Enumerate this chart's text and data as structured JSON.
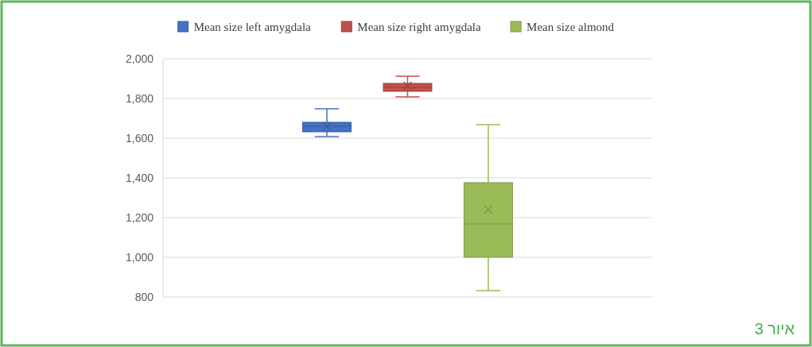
{
  "chart_data": {
    "type": "box",
    "categories": [
      null
    ],
    "series": [
      {
        "name": "Mean size left amygdala",
        "color": "#4472c4",
        "boxes": [
          {
            "low": 1608,
            "q1": 1632,
            "median": 1660,
            "q3": 1680,
            "high": 1748,
            "mean": 1660
          }
        ]
      },
      {
        "name": "Mean size right amygdala",
        "color": "#c0504d",
        "boxes": [
          {
            "low": 1808,
            "q1": 1836,
            "median": 1856,
            "q3": 1876,
            "high": 1912,
            "mean": 1864
          }
        ]
      },
      {
        "name": "Mean size almond",
        "color": "#9bbb59",
        "boxes": [
          {
            "low": 832,
            "q1": 1000,
            "median": 1168,
            "q3": 1376,
            "high": 1668,
            "mean": 1240
          }
        ]
      }
    ],
    "ylim": [
      800,
      2000
    ],
    "yticks": [
      {
        "value": 800,
        "label": "800"
      },
      {
        "value": 1000,
        "label": "1,000"
      },
      {
        "value": 1200,
        "label": "1,200"
      },
      {
        "value": 1400,
        "label": "1,400"
      },
      {
        "value": 1600,
        "label": "1,600"
      },
      {
        "value": 1800,
        "label": "1,800"
      },
      {
        "value": 2000,
        "label": "2,000"
      }
    ],
    "grid": "y",
    "legend": "top",
    "marker": "cross",
    "annotations": [
      "איור 3"
    ]
  }
}
